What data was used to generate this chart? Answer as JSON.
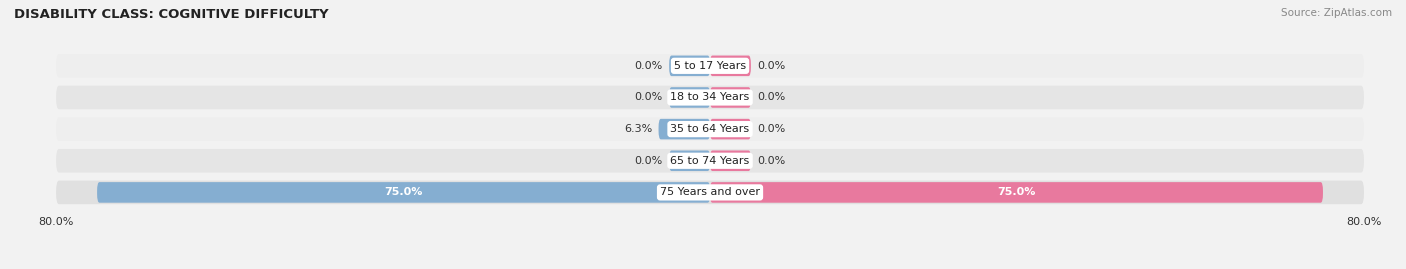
{
  "title": "DISABILITY CLASS: COGNITIVE DIFFICULTY",
  "source": "Source: ZipAtlas.com",
  "categories": [
    "5 to 17 Years",
    "18 to 34 Years",
    "35 to 64 Years",
    "65 to 74 Years",
    "75 Years and over"
  ],
  "male_values": [
    0.0,
    0.0,
    6.3,
    0.0,
    75.0
  ],
  "female_values": [
    0.0,
    0.0,
    0.0,
    0.0,
    75.0
  ],
  "male_color": "#85aed1",
  "female_color": "#e8799e",
  "row_bg_colors": [
    "#eeeeee",
    "#e5e5e5",
    "#eeeeee",
    "#e5e5e5",
    "#e0e0e0"
  ],
  "max_value": 80.0,
  "min_bar_stub": 5.0,
  "label_fontsize": 8.0,
  "title_fontsize": 9.5,
  "source_fontsize": 7.5
}
